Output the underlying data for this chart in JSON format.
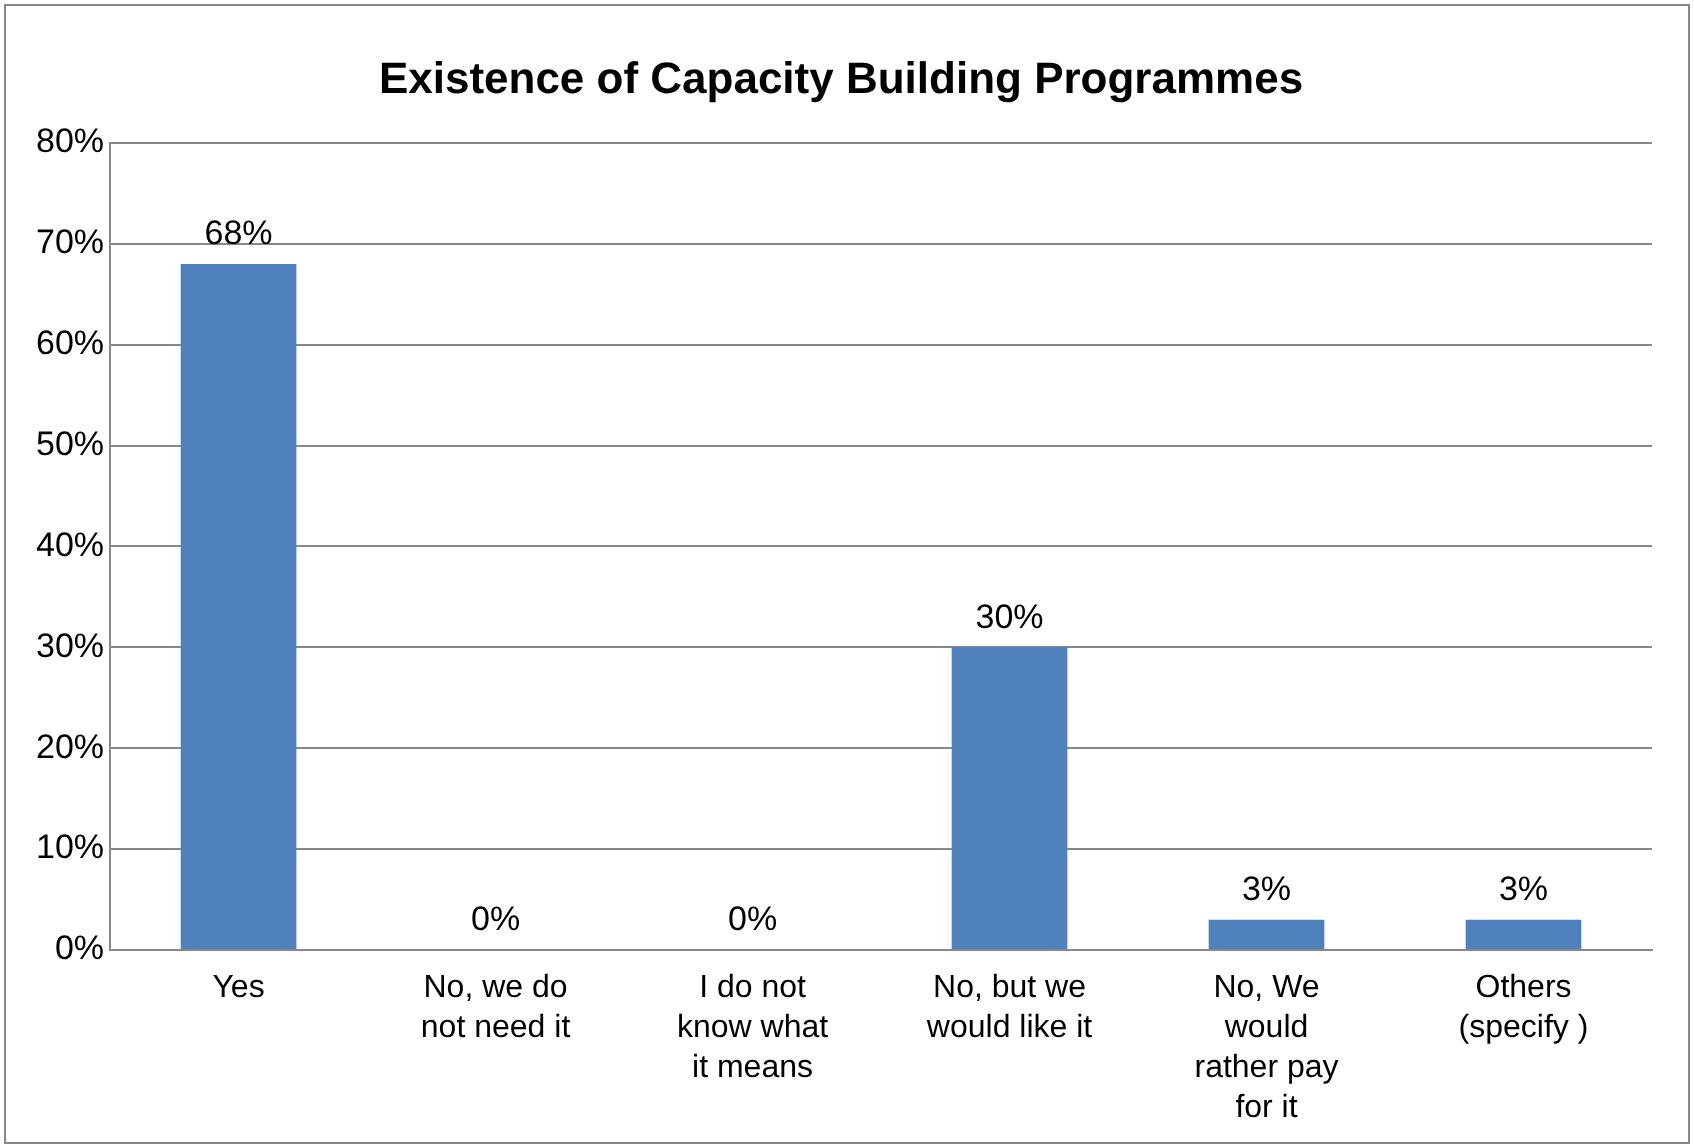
{
  "chart_data": {
    "type": "bar",
    "title": "Existence of Capacity Building Programmes",
    "categories": [
      "Yes",
      "No, we do not need it",
      "I do not know what it means",
      "No, but we would like it",
      "No, We would rather pay for it",
      "Others (specify )"
    ],
    "values": [
      68,
      0,
      0,
      30,
      3,
      3
    ],
    "value_labels": [
      "68%",
      "0%",
      "0%",
      "30%",
      "3%",
      "3%"
    ],
    "color": "#4f81bd",
    "ylim": [
      0,
      80
    ],
    "yticks": [
      {
        "value": 0,
        "label": "0%"
      },
      {
        "value": 10,
        "label": "10%"
      },
      {
        "value": 20,
        "label": "20%"
      },
      {
        "value": 30,
        "label": "30%"
      },
      {
        "value": 40,
        "label": "40%"
      },
      {
        "value": 50,
        "label": "50%"
      },
      {
        "value": 60,
        "label": "60%"
      },
      {
        "value": 70,
        "label": "70%"
      },
      {
        "value": 80,
        "label": "80%"
      }
    ],
    "grid": "y",
    "legend": false
  }
}
